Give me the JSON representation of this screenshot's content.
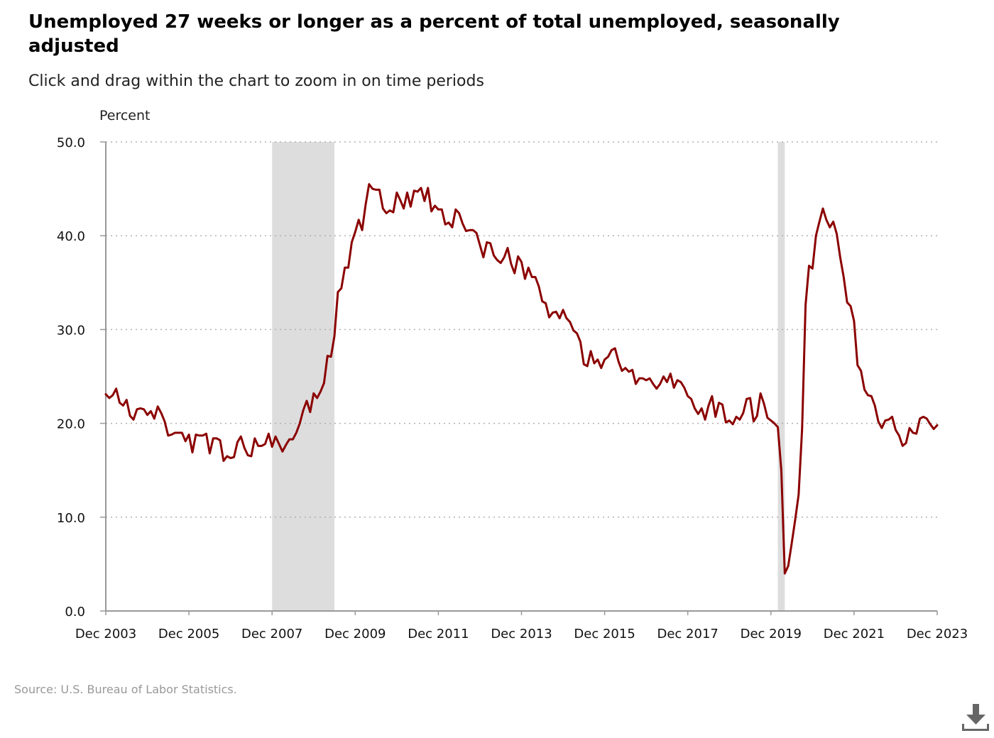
{
  "header": {
    "title": "Unemployed 27 weeks or longer as a percent of total unemployed, seasonally adjusted",
    "subtitle": "Click and drag within the chart to zoom in on time periods"
  },
  "footer": {
    "source": "Source: U.S. Bureau of Labor Statistics."
  },
  "icons": {
    "download": "download-icon"
  },
  "colors": {
    "series": "#8b0000",
    "recession": "#dddddd",
    "grid": "#b0b0b0",
    "axis": "#999999"
  },
  "chart_data": {
    "type": "line",
    "title": "Unemployed 27 weeks or longer as a percent of total unemployed, seasonally adjusted",
    "subtitle": "Click and drag within the chart to zoom in on time periods",
    "ylabel": "Percent",
    "xlabel": "",
    "ylim": [
      0,
      50
    ],
    "yticks": [
      "0.0",
      "10.0",
      "20.0",
      "30.0",
      "40.0",
      "50.0"
    ],
    "xlim": [
      "2003-12",
      "2023-12"
    ],
    "xticks": [
      "Dec 2003",
      "Dec 2005",
      "Dec 2007",
      "Dec 2009",
      "Dec 2011",
      "Dec 2013",
      "Dec 2015",
      "Dec 2017",
      "Dec 2019",
      "Dec 2021",
      "Dec 2023"
    ],
    "grid": "horizontal dotted",
    "recessions": [
      {
        "start": "2007-12",
        "end": "2009-06"
      },
      {
        "start": "2020-02",
        "end": "2020-04"
      }
    ],
    "series": [
      {
        "start": "2003-12",
        "frequency": "monthly",
        "values": [
          23.1,
          22.7,
          23.0,
          23.7,
          22.2,
          21.9,
          22.5,
          20.8,
          20.4,
          21.5,
          21.6,
          21.5,
          20.9,
          21.3,
          20.5,
          21.8,
          21.1,
          20.2,
          18.7,
          18.8,
          19.0,
          19.0,
          19.0,
          18.1,
          18.8,
          16.9,
          18.8,
          18.7,
          18.7,
          18.9,
          16.8,
          18.4,
          18.4,
          18.2,
          16.0,
          16.5,
          16.3,
          16.4,
          18.0,
          18.6,
          17.4,
          16.6,
          16.5,
          18.4,
          17.6,
          17.6,
          17.8,
          18.9,
          17.5,
          18.6,
          17.8,
          17.0,
          17.7,
          18.3,
          18.3,
          19.0,
          20.0,
          21.4,
          22.4,
          21.2,
          23.2,
          22.7,
          23.4,
          24.3,
          27.2,
          27.1,
          29.3,
          34.0,
          34.4,
          36.6,
          36.6,
          39.3,
          40.4,
          41.7,
          40.6,
          43.3,
          45.5,
          45.0,
          44.9,
          44.9,
          42.9,
          42.4,
          42.7,
          42.5,
          44.6,
          43.8,
          42.9,
          44.6,
          43.1,
          44.8,
          44.7,
          45.1,
          43.7,
          45.1,
          42.6,
          43.2,
          42.8,
          42.8,
          41.2,
          41.4,
          40.9,
          42.8,
          42.4,
          41.3,
          40.5,
          40.6,
          40.6,
          40.3,
          39.0,
          37.7,
          39.3,
          39.2,
          37.9,
          37.4,
          37.1,
          37.7,
          38.7,
          37.0,
          36.0,
          37.8,
          37.2,
          35.4,
          36.6,
          35.6,
          35.6,
          34.6,
          33.0,
          32.8,
          31.3,
          31.8,
          31.9,
          31.2,
          32.1,
          31.2,
          30.8,
          29.9,
          29.6,
          28.7,
          26.3,
          26.1,
          27.7,
          26.4,
          26.8,
          25.9,
          26.8,
          27.1,
          27.8,
          28.0,
          26.6,
          25.6,
          25.9,
          25.5,
          25.7,
          24.2,
          24.8,
          24.8,
          24.6,
          24.8,
          24.2,
          23.7,
          24.2,
          25.0,
          24.4,
          25.3,
          23.8,
          24.6,
          24.4,
          23.8,
          22.9,
          22.6,
          21.6,
          21.0,
          21.6,
          20.4,
          21.9,
          22.9,
          20.7,
          22.2,
          22.0,
          20.1,
          20.3,
          19.9,
          20.7,
          20.4,
          21.1,
          22.6,
          22.7,
          20.2,
          20.8,
          23.2,
          22.1,
          20.6,
          20.3,
          20.0,
          19.6,
          15.0,
          4.0,
          4.8,
          7.2,
          9.7,
          12.4,
          19.4,
          32.6,
          36.8,
          36.5,
          40.0,
          41.5,
          42.9,
          41.7,
          40.9,
          41.5,
          40.2,
          37.7,
          35.6,
          32.9,
          32.5,
          30.9,
          26.2,
          25.6,
          23.6,
          23.0,
          22.9,
          21.9,
          20.2,
          19.5,
          20.3,
          20.4,
          20.7,
          19.3,
          18.7,
          17.6,
          17.9,
          19.5,
          19.0,
          18.9,
          20.5,
          20.7,
          20.5,
          19.9,
          19.4,
          19.8
        ]
      }
    ]
  }
}
